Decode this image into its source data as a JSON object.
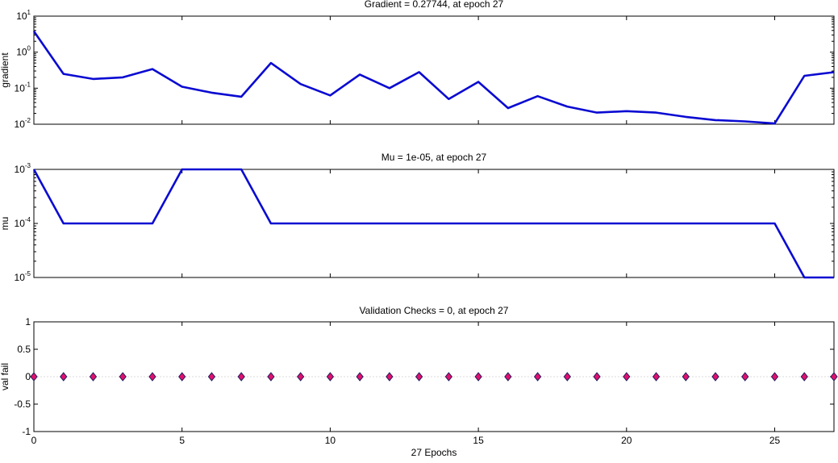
{
  "chart_data": [
    {
      "type": "line",
      "title": "Gradient = 0.27744, at epoch 27",
      "xlabel": "",
      "ylabel": "gradient",
      "yscale": "log",
      "ylim": [
        0.01,
        10
      ],
      "xlim": [
        0,
        27
      ],
      "yticks": [
        {
          "base": "10",
          "exp": "-2",
          "value": 0.01
        },
        {
          "base": "10",
          "exp": "-1",
          "value": 0.1
        },
        {
          "base": "10",
          "exp": "0",
          "value": 1
        },
        {
          "base": "10",
          "exp": "1",
          "value": 10
        }
      ],
      "x": [
        0,
        1,
        2,
        3,
        4,
        5,
        6,
        7,
        8,
        9,
        10,
        11,
        12,
        13,
        14,
        15,
        16,
        17,
        18,
        19,
        20,
        21,
        22,
        23,
        24,
        25,
        26,
        27
      ],
      "series": [
        {
          "values": [
            3.8,
            0.25,
            0.18,
            0.2,
            0.34,
            0.11,
            0.075,
            0.058,
            0.5,
            0.13,
            0.063,
            0.24,
            0.1,
            0.28,
            0.05,
            0.15,
            0.028,
            0.06,
            0.031,
            0.021,
            0.023,
            0.021,
            0.016,
            0.013,
            0.012,
            0.0105,
            0.22,
            0.27744
          ]
        }
      ]
    },
    {
      "type": "line",
      "title": "Mu = 1e-05, at epoch 27",
      "xlabel": "",
      "ylabel": "mu",
      "yscale": "log",
      "ylim": [
        1e-05,
        0.001
      ],
      "xlim": [
        0,
        27
      ],
      "yticks": [
        {
          "base": "10",
          "exp": "-5",
          "value": 1e-05
        },
        {
          "base": "10",
          "exp": "-4",
          "value": 0.0001
        },
        {
          "base": "10",
          "exp": "-3",
          "value": 0.001
        }
      ],
      "x": [
        0,
        1,
        2,
        3,
        4,
        5,
        6,
        7,
        8,
        9,
        10,
        11,
        12,
        13,
        14,
        15,
        16,
        17,
        18,
        19,
        20,
        21,
        22,
        23,
        24,
        25,
        26,
        27
      ],
      "series": [
        {
          "values": [
            0.001,
            0.0001,
            0.0001,
            0.0001,
            0.0001,
            0.001,
            0.001,
            0.001,
            0.0001,
            0.0001,
            0.0001,
            0.0001,
            0.0001,
            0.0001,
            0.0001,
            0.0001,
            0.0001,
            0.0001,
            0.0001,
            0.0001,
            0.0001,
            0.0001,
            0.0001,
            0.0001,
            0.0001,
            0.0001,
            1e-05,
            1e-05
          ]
        }
      ]
    },
    {
      "type": "scatter",
      "title": "Validation Checks = 0, at epoch 27",
      "xlabel": "27 Epochs",
      "ylabel": "val fail",
      "yscale": "linear",
      "ylim": [
        -1,
        1
      ],
      "xlim": [
        0,
        27
      ],
      "yticks": [
        -1,
        -0.5,
        0,
        0.5,
        1
      ],
      "yticklabels": [
        "-1",
        "-0.5",
        "0",
        "0.5",
        "1"
      ],
      "xticks": [
        0,
        5,
        10,
        15,
        20,
        25
      ],
      "xticklabels": [
        "0",
        "5",
        "10",
        "15",
        "20",
        "25"
      ],
      "x": [
        0,
        1,
        2,
        3,
        4,
        5,
        6,
        7,
        8,
        9,
        10,
        11,
        12,
        13,
        14,
        15,
        16,
        17,
        18,
        19,
        20,
        21,
        22,
        23,
        24,
        25,
        26,
        27
      ],
      "series": [
        {
          "values": [
            0,
            0,
            0,
            0,
            0,
            0,
            0,
            0,
            0,
            0,
            0,
            0,
            0,
            0,
            0,
            0,
            0,
            0,
            0,
            0,
            0,
            0,
            0,
            0,
            0,
            0,
            0,
            0
          ]
        }
      ]
    }
  ],
  "colors": {
    "line": "#0a0ad2",
    "marker_fill": "#e0106e",
    "marker_edge": "#1a1a5a",
    "axes": "#000000",
    "grid": "#d8d8d8"
  }
}
